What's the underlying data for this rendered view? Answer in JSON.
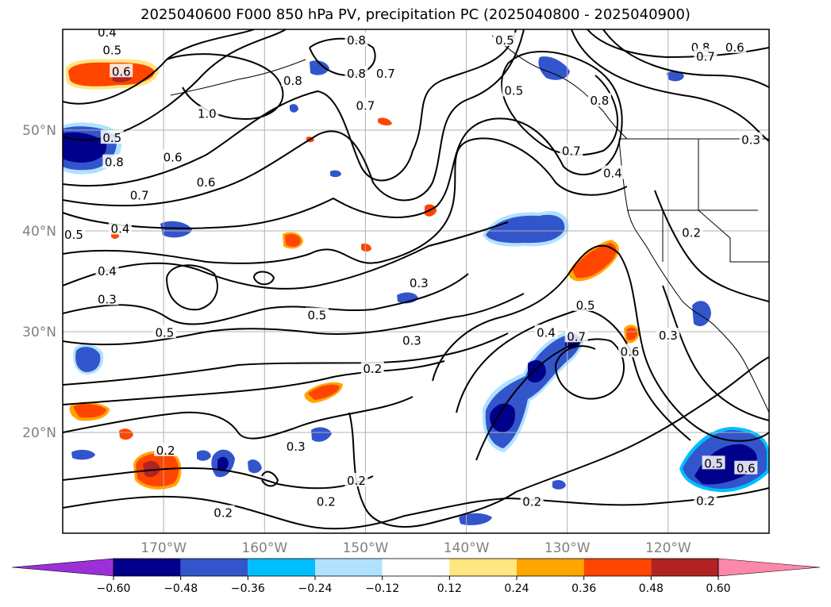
{
  "chart_data": {
    "type": "contour-map",
    "title": "2025040600 F000 850 hPa PV, precipitation PC (2025040800 - 2025040900)",
    "lon_range": [
      180,
      110
    ],
    "lat_range": [
      10,
      60
    ],
    "x_ticks": [
      {
        "lon": 170,
        "label": "170°W"
      },
      {
        "lon": 160,
        "label": "160°W"
      },
      {
        "lon": 150,
        "label": "150°W"
      },
      {
        "lon": 140,
        "label": "140°W"
      },
      {
        "lon": 130,
        "label": "130°W"
      },
      {
        "lon": 120,
        "label": "120°W"
      }
    ],
    "y_ticks": [
      {
        "lat": 50,
        "label": "50°N"
      },
      {
        "lat": 40,
        "label": "40°N"
      },
      {
        "lat": 30,
        "label": "30°N"
      },
      {
        "lat": 20,
        "label": "20°N"
      }
    ],
    "grid": true,
    "colorbar": {
      "colors": [
        "#9b30d9",
        "#00008b",
        "#3355cc",
        "#00bfff",
        "#b0e2ff",
        "#ffffff",
        "#ffe680",
        "#ffa500",
        "#ff4500",
        "#b22222",
        "#ff88aa"
      ],
      "boundaries": [
        -0.6,
        -0.48,
        -0.36,
        -0.24,
        -0.12,
        0.12,
        0.24,
        0.36,
        0.48,
        0.6
      ],
      "labels": [
        "−0.60",
        "−0.48",
        "−0.36",
        "−0.24",
        "−0.12",
        "0.12",
        "0.24",
        "0.36",
        "0.48",
        "0.60"
      ],
      "extend": "both"
    },
    "pv_contour_labels": [
      {
        "text": "0.4",
        "lon": 175.6,
        "lat": 59.7
      },
      {
        "text": "0.5",
        "lon": 175.1,
        "lat": 57.9
      },
      {
        "text": "0.6",
        "lon": 174.2,
        "lat": 55.8
      },
      {
        "text": "0.8",
        "lon": 157.2,
        "lat": 54.9
      },
      {
        "text": "1.0",
        "lon": 165.7,
        "lat": 51.6
      },
      {
        "text": "0.8",
        "lon": 150.9,
        "lat": 58.9
      },
      {
        "text": "0.8",
        "lon": 150.9,
        "lat": 55.6
      },
      {
        "text": "0.7",
        "lon": 148.0,
        "lat": 55.6
      },
      {
        "text": "0.7",
        "lon": 150.0,
        "lat": 52.4
      },
      {
        "text": "0.5",
        "lon": 136.2,
        "lat": 58.9
      },
      {
        "text": "0.5",
        "lon": 135.3,
        "lat": 53.9
      },
      {
        "text": "0.8",
        "lon": 116.8,
        "lat": 58.2
      },
      {
        "text": "0.7",
        "lon": 116.3,
        "lat": 57.3
      },
      {
        "text": "0.6",
        "lon": 113.4,
        "lat": 58.2
      },
      {
        "text": "0.8",
        "lon": 126.8,
        "lat": 52.9
      },
      {
        "text": "0.7",
        "lon": 129.6,
        "lat": 47.9
      },
      {
        "text": "0.3",
        "lon": 111.8,
        "lat": 49.0
      },
      {
        "text": "0.5",
        "lon": 175.1,
        "lat": 49.2
      },
      {
        "text": "0.8",
        "lon": 174.9,
        "lat": 46.8
      },
      {
        "text": "0.6",
        "lon": 169.1,
        "lat": 47.3
      },
      {
        "text": "0.6",
        "lon": 165.8,
        "lat": 44.8
      },
      {
        "text": "0.7",
        "lon": 172.4,
        "lat": 43.5
      },
      {
        "text": "0.4",
        "lon": 174.3,
        "lat": 40.2
      },
      {
        "text": "0.5",
        "lon": 178.9,
        "lat": 39.6
      },
      {
        "text": "0.4",
        "lon": 175.6,
        "lat": 36.0
      },
      {
        "text": "0.3",
        "lon": 175.6,
        "lat": 33.2
      },
      {
        "text": "0.5",
        "lon": 169.9,
        "lat": 29.9
      },
      {
        "text": "0.5",
        "lon": 154.8,
        "lat": 31.6
      },
      {
        "text": "0.3",
        "lon": 144.7,
        "lat": 34.8
      },
      {
        "text": "0.3",
        "lon": 145.4,
        "lat": 29.1
      },
      {
        "text": "0.2",
        "lon": 149.3,
        "lat": 26.3
      },
      {
        "text": "0.3",
        "lon": 156.9,
        "lat": 18.6
      },
      {
        "text": "0.2",
        "lon": 169.8,
        "lat": 18.2
      },
      {
        "text": "0.2",
        "lon": 150.9,
        "lat": 15.2
      },
      {
        "text": "0.2",
        "lon": 153.9,
        "lat": 13.1
      },
      {
        "text": "0.2",
        "lon": 164.1,
        "lat": 12.0
      },
      {
        "text": "0.4",
        "lon": 132.1,
        "lat": 29.9
      },
      {
        "text": "0.7",
        "lon": 129.1,
        "lat": 29.5
      },
      {
        "text": "0.5",
        "lon": 128.2,
        "lat": 32.6
      },
      {
        "text": "0.6",
        "lon": 123.8,
        "lat": 28.0
      },
      {
        "text": "0.3",
        "lon": 120.0,
        "lat": 29.6
      },
      {
        "text": "0.4",
        "lon": 125.5,
        "lat": 45.7
      },
      {
        "text": "0.2",
        "lon": 117.7,
        "lat": 39.8
      },
      {
        "text": "0.2",
        "lon": 133.5,
        "lat": 13.1
      },
      {
        "text": "0.6",
        "lon": 112.3,
        "lat": 16.4
      },
      {
        "text": "0.5",
        "lon": 115.5,
        "lat": 16.9
      },
      {
        "text": "0.2",
        "lon": 116.3,
        "lat": 13.2
      }
    ]
  }
}
